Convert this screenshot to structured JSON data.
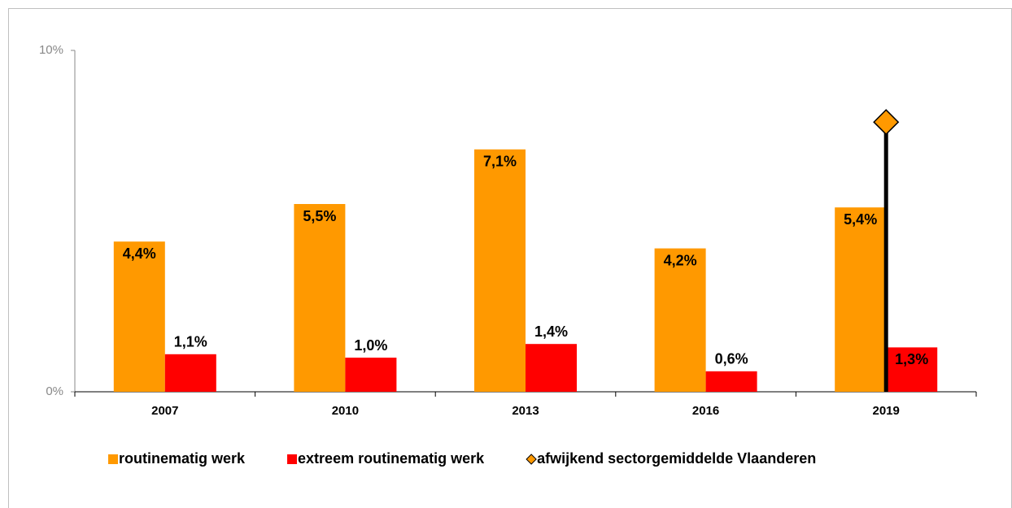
{
  "chart_data": {
    "type": "bar",
    "categories": [
      "2007",
      "2010",
      "2013",
      "2016",
      "2019"
    ],
    "series": [
      {
        "name": "routinematig werk",
        "color": "#ff9900",
        "values": [
          4.4,
          5.5,
          7.1,
          4.2,
          5.4
        ],
        "value_labels": [
          "4,4%",
          "5,5%",
          "7,1%",
          "4,2%",
          "5,4%"
        ]
      },
      {
        "name": "extreem routinematig werk",
        "color": "#ff0000",
        "values": [
          1.1,
          1.0,
          1.4,
          0.6,
          1.3
        ],
        "value_labels": [
          "1,1%",
          "1,0%",
          "1,4%",
          "0,6%",
          "1,3%"
        ]
      },
      {
        "name": "afwijkend sectorgemiddelde Vlaanderen",
        "color": "#ff9900",
        "marker": "diamond",
        "values": [
          null,
          null,
          null,
          null,
          7.9
        ]
      }
    ],
    "ylim": [
      0,
      10
    ],
    "yticks": [
      {
        "value": 0,
        "label": "0%"
      },
      {
        "value": 10,
        "label": "10%"
      }
    ],
    "grid": false,
    "legend": "bottom"
  }
}
